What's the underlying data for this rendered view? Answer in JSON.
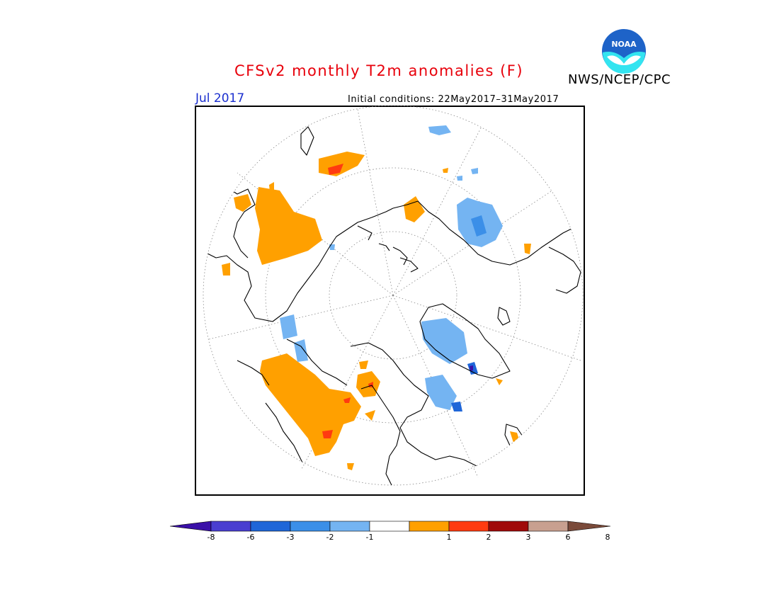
{
  "header": {
    "title": "CFSv2 monthly T2m anomalies (F)",
    "agency": "NWS/NCEP/CPC",
    "logo_text": "NOAA",
    "valid_month": "Jul 2017",
    "initial_conditions": "Initial conditions: 22May2017–31May2017"
  },
  "colorbar": {
    "colors": [
      "#3a10a8",
      "#4a3fd0",
      "#1f66d8",
      "#3b8fe8",
      "#74b4f2",
      "#ffffff",
      "#ffa000",
      "#ff3b10",
      "#a00a0a",
      "#c8a090",
      "#7a4a3a"
    ],
    "tick_labels": [
      "-8",
      "-6",
      "-3",
      "-2",
      "-1",
      "1",
      "2",
      "3",
      "6",
      "8"
    ]
  },
  "colors": {
    "warm1": "#ffa000",
    "warm2": "#ff3b10",
    "cool1": "#74b4f2",
    "cool2": "#3b8fe8",
    "cool3": "#1f66d8",
    "cool4": "#3a10a8"
  }
}
